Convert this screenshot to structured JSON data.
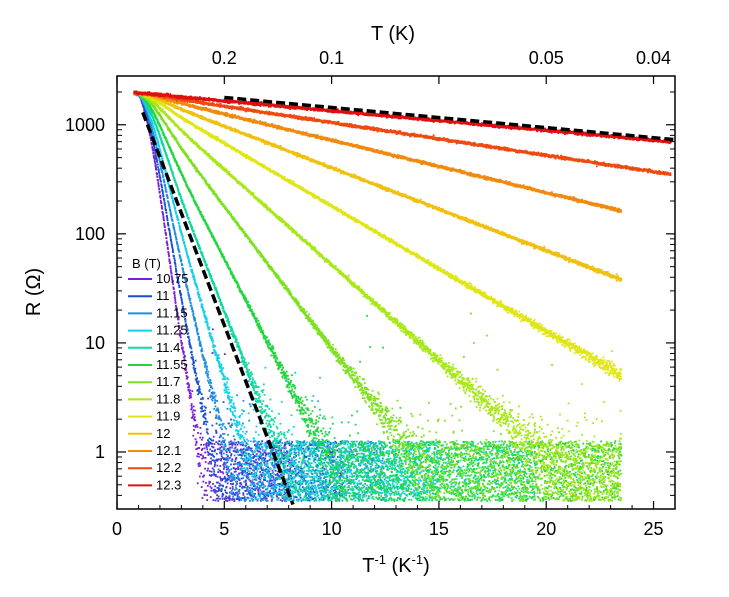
{
  "chart_data": {
    "type": "scatter",
    "xlabel": "T",
    "xlabel_sup": "-1",
    "xlabel_unit_open": " (K",
    "xlabel_unit_sup": "-1",
    "xlabel_unit_close": ")",
    "ylabel": "R (Ω)",
    "top_axis_label": "T (K)",
    "x_ticks": [
      "0",
      "5",
      "10",
      "15",
      "20",
      "25"
    ],
    "x_tick_values": [
      0,
      5,
      10,
      15,
      20,
      25
    ],
    "y_ticks": [
      "1",
      "10",
      "100",
      "1000"
    ],
    "y_tick_values": [
      1,
      10,
      100,
      1000
    ],
    "top_ticks": [
      "0.2",
      "0.1",
      "0.05",
      "0.04"
    ],
    "top_tick_values": [
      0.2,
      0.1,
      0.05,
      0.04
    ],
    "xlim": [
      0,
      26
    ],
    "ylim": [
      0.3,
      2800
    ],
    "yscale": "log",
    "legend_title": "B (T)",
    "legend_position": "left",
    "series": [
      {
        "name": "10.75",
        "color": "#7a1fd6",
        "r0": 1950,
        "slope": 1.17,
        "x_end": 8.1
      },
      {
        "name": "11",
        "color": "#1a4fd0",
        "r0": 1950,
        "slope": 0.97,
        "x_end": 10.5
      },
      {
        "name": "11.15",
        "color": "#1e8fe0",
        "r0": 1950,
        "slope": 0.8,
        "x_end": 12.5
      },
      {
        "name": "11.25",
        "color": "#16d0e8",
        "r0": 1950,
        "slope": 0.66,
        "x_end": 15.0
      },
      {
        "name": "11.4",
        "color": "#10d8a0",
        "r0": 1950,
        "slope": 0.5,
        "x_end": 19.5
      },
      {
        "name": "11.55",
        "color": "#22d640",
        "r0": 1950,
        "slope": 0.38,
        "x_end": 23.5
      },
      {
        "name": "11.7",
        "color": "#7ee020",
        "r0": 1950,
        "slope": 0.26,
        "x_end": 23.5
      },
      {
        "name": "11.8",
        "color": "#a8e818",
        "r0": 1950,
        "slope": 0.175,
        "x_end": 23.5
      },
      {
        "name": "11.9",
        "color": "#e0e618",
        "r0": 1950,
        "slope": 0.115,
        "x_end": 23.5
      },
      {
        "name": "12",
        "color": "#f0c010",
        "r0": 1950,
        "slope": 0.076,
        "x_end": 23.5
      },
      {
        "name": "12.1",
        "color": "#f08a10",
        "r0": 1950,
        "slope": 0.048,
        "x_end": 23.5
      },
      {
        "name": "12.2",
        "color": "#f04a10",
        "r0": 1950,
        "slope": 0.03,
        "x_end": 25.8
      },
      {
        "name": "12.3",
        "color": "#e01010",
        "r0": 1950,
        "slope": 0.018,
        "x_end": 25.8
      }
    ],
    "fits": [
      {
        "name": "fit-steep",
        "x": [
          1.2,
          8.2
        ],
        "y": [
          1300,
          0.33
        ],
        "style": "dashed",
        "color": "#000000"
      },
      {
        "name": "fit-shallow",
        "x": [
          5.0,
          26.0
        ],
        "y": [
          1780,
          730
        ],
        "style": "dashed",
        "color": "#000000"
      }
    ]
  }
}
